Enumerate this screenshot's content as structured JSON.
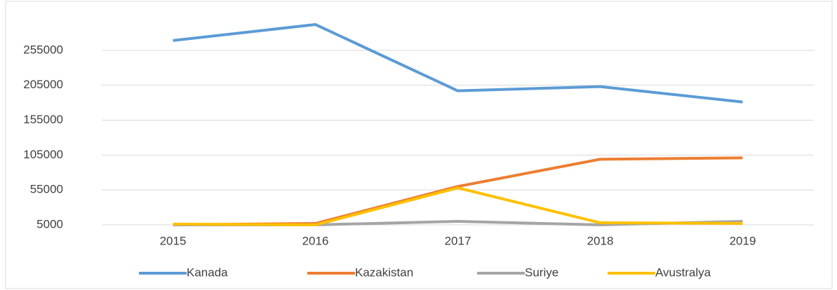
{
  "chart_data": {
    "type": "line",
    "categories": [
      "2015",
      "2016",
      "2017",
      "2018",
      "2019"
    ],
    "series": [
      {
        "name": "Kanada",
        "color": "#5b9bd5",
        "values": [
          269000,
          292000,
          197000,
          203000,
          181000
        ]
      },
      {
        "name": "Kazakistan",
        "color": "#ed7d31",
        "values": [
          5000,
          7000,
          60000,
          99000,
          101000
        ]
      },
      {
        "name": "Suriye",
        "color": "#a5a5a5",
        "values": [
          5000,
          5000,
          10000,
          5000,
          10000
        ]
      },
      {
        "name": "Avustralya",
        "color": "#ffc000",
        "values": [
          6000,
          5000,
          58000,
          8000,
          7000
        ]
      }
    ],
    "ylim": [
      5000,
      305000
    ],
    "yticks": [
      5000,
      55000,
      105000,
      155000,
      205000,
      255000
    ],
    "grid": true,
    "legend": "bottom"
  }
}
